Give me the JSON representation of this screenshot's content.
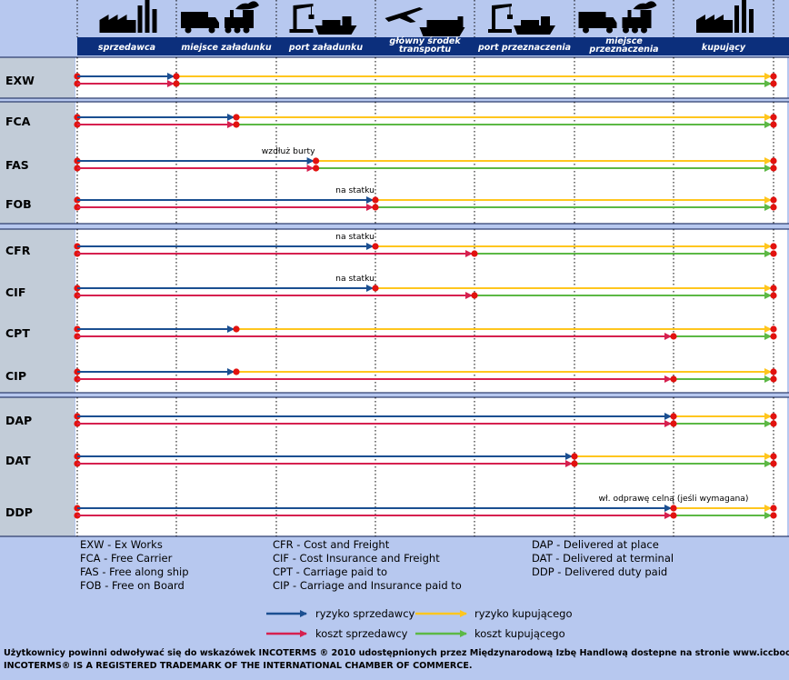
{
  "columns": [
    "sprzedawca",
    "miejsce załadunku",
    "port załadunku",
    "główny środek\ntransportu",
    "port przeznaczenia",
    "miejsce\nprzeznaczenia",
    "kupujący"
  ],
  "column_icons": [
    "factory-icon",
    "truck-train-icon",
    "port-crane-ship-icon",
    "plane-ship-icon",
    "port-crane-ship-icon",
    "truck-train-icon",
    "factory-icon"
  ],
  "terms": [
    {
      "code": "EXW",
      "risk_transfer": 1,
      "cost_transfer": 1,
      "note": ""
    },
    {
      "code": "FCA",
      "risk_transfer": 1.6,
      "cost_transfer": 1.6,
      "note": ""
    },
    {
      "code": "FAS",
      "risk_transfer": 2.4,
      "cost_transfer": 2.4,
      "note": "wzdłuż burty"
    },
    {
      "code": "FOB",
      "risk_transfer": 3,
      "cost_transfer": 3,
      "note": "na statku"
    },
    {
      "code": "CFR",
      "risk_transfer": 3,
      "cost_transfer": 4,
      "note": "na statku"
    },
    {
      "code": "CIF",
      "risk_transfer": 3,
      "cost_transfer": 4,
      "note": "na statku"
    },
    {
      "code": "CPT",
      "risk_transfer": 1.6,
      "cost_transfer": 6,
      "note": ""
    },
    {
      "code": "CIP",
      "risk_transfer": 1.6,
      "cost_transfer": 6,
      "note": ""
    },
    {
      "code": "DAP",
      "risk_transfer": 6,
      "cost_transfer": 6,
      "note": ""
    },
    {
      "code": "DAT",
      "risk_transfer": 5,
      "cost_transfer": 5,
      "note": ""
    },
    {
      "code": "DDP",
      "risk_transfer": 6,
      "cost_transfer": 6,
      "note": "wł. odprawę celną (jeśli wymagana)"
    }
  ],
  "groups": [
    [
      "EXW"
    ],
    [
      "FCA",
      "FAS",
      "FOB"
    ],
    [
      "CFR",
      "CIF",
      "CPT",
      "CIP"
    ],
    [
      "DAP",
      "DAT",
      "DDP"
    ]
  ],
  "abbreviations": {
    "col1": [
      "EXW - Ex Works",
      "FCA - Free Carrier",
      "FAS - Free along ship",
      "FOB - Free on Board"
    ],
    "col2": [
      "CFR - Cost and Freight",
      "CIF - Cost Insurance and Freight",
      "CPT - Carriage paid to",
      "CIP - Carriage and Insurance paid to"
    ],
    "col3": [
      "DAP - Delivered at place",
      "DAT - Delivered at terminal",
      "DDP - Delivered duty paid"
    ]
  },
  "legend": {
    "seller_risk": "ryzyko sprzedawcy",
    "buyer_risk": "ryzyko kupującego",
    "seller_cost": "koszt sprzedawcy",
    "buyer_cost": "koszt kupującego"
  },
  "colors": {
    "seller_risk": "#1b4f91",
    "seller_cost": "#d6204f",
    "buyer_risk": "#ffc61e",
    "buyer_cost": "#5cb845",
    "header": "#0c2f7c",
    "row_label_bg": "#c2ccd8",
    "chart_bg": "#ffffff"
  },
  "footnote": [
    "Użytkownicy powinni odwoływać się do wskazówek INCOTERMS ® 2010 udostępnionych przez Międzynarodową Izbę Handlową dostepne na stronie www.iccbooks.com",
    "INCOTERMS® IS A REGISTERED TRADEMARK OF THE INTERNATIONAL CHAMBER OF COMMERCE."
  ]
}
